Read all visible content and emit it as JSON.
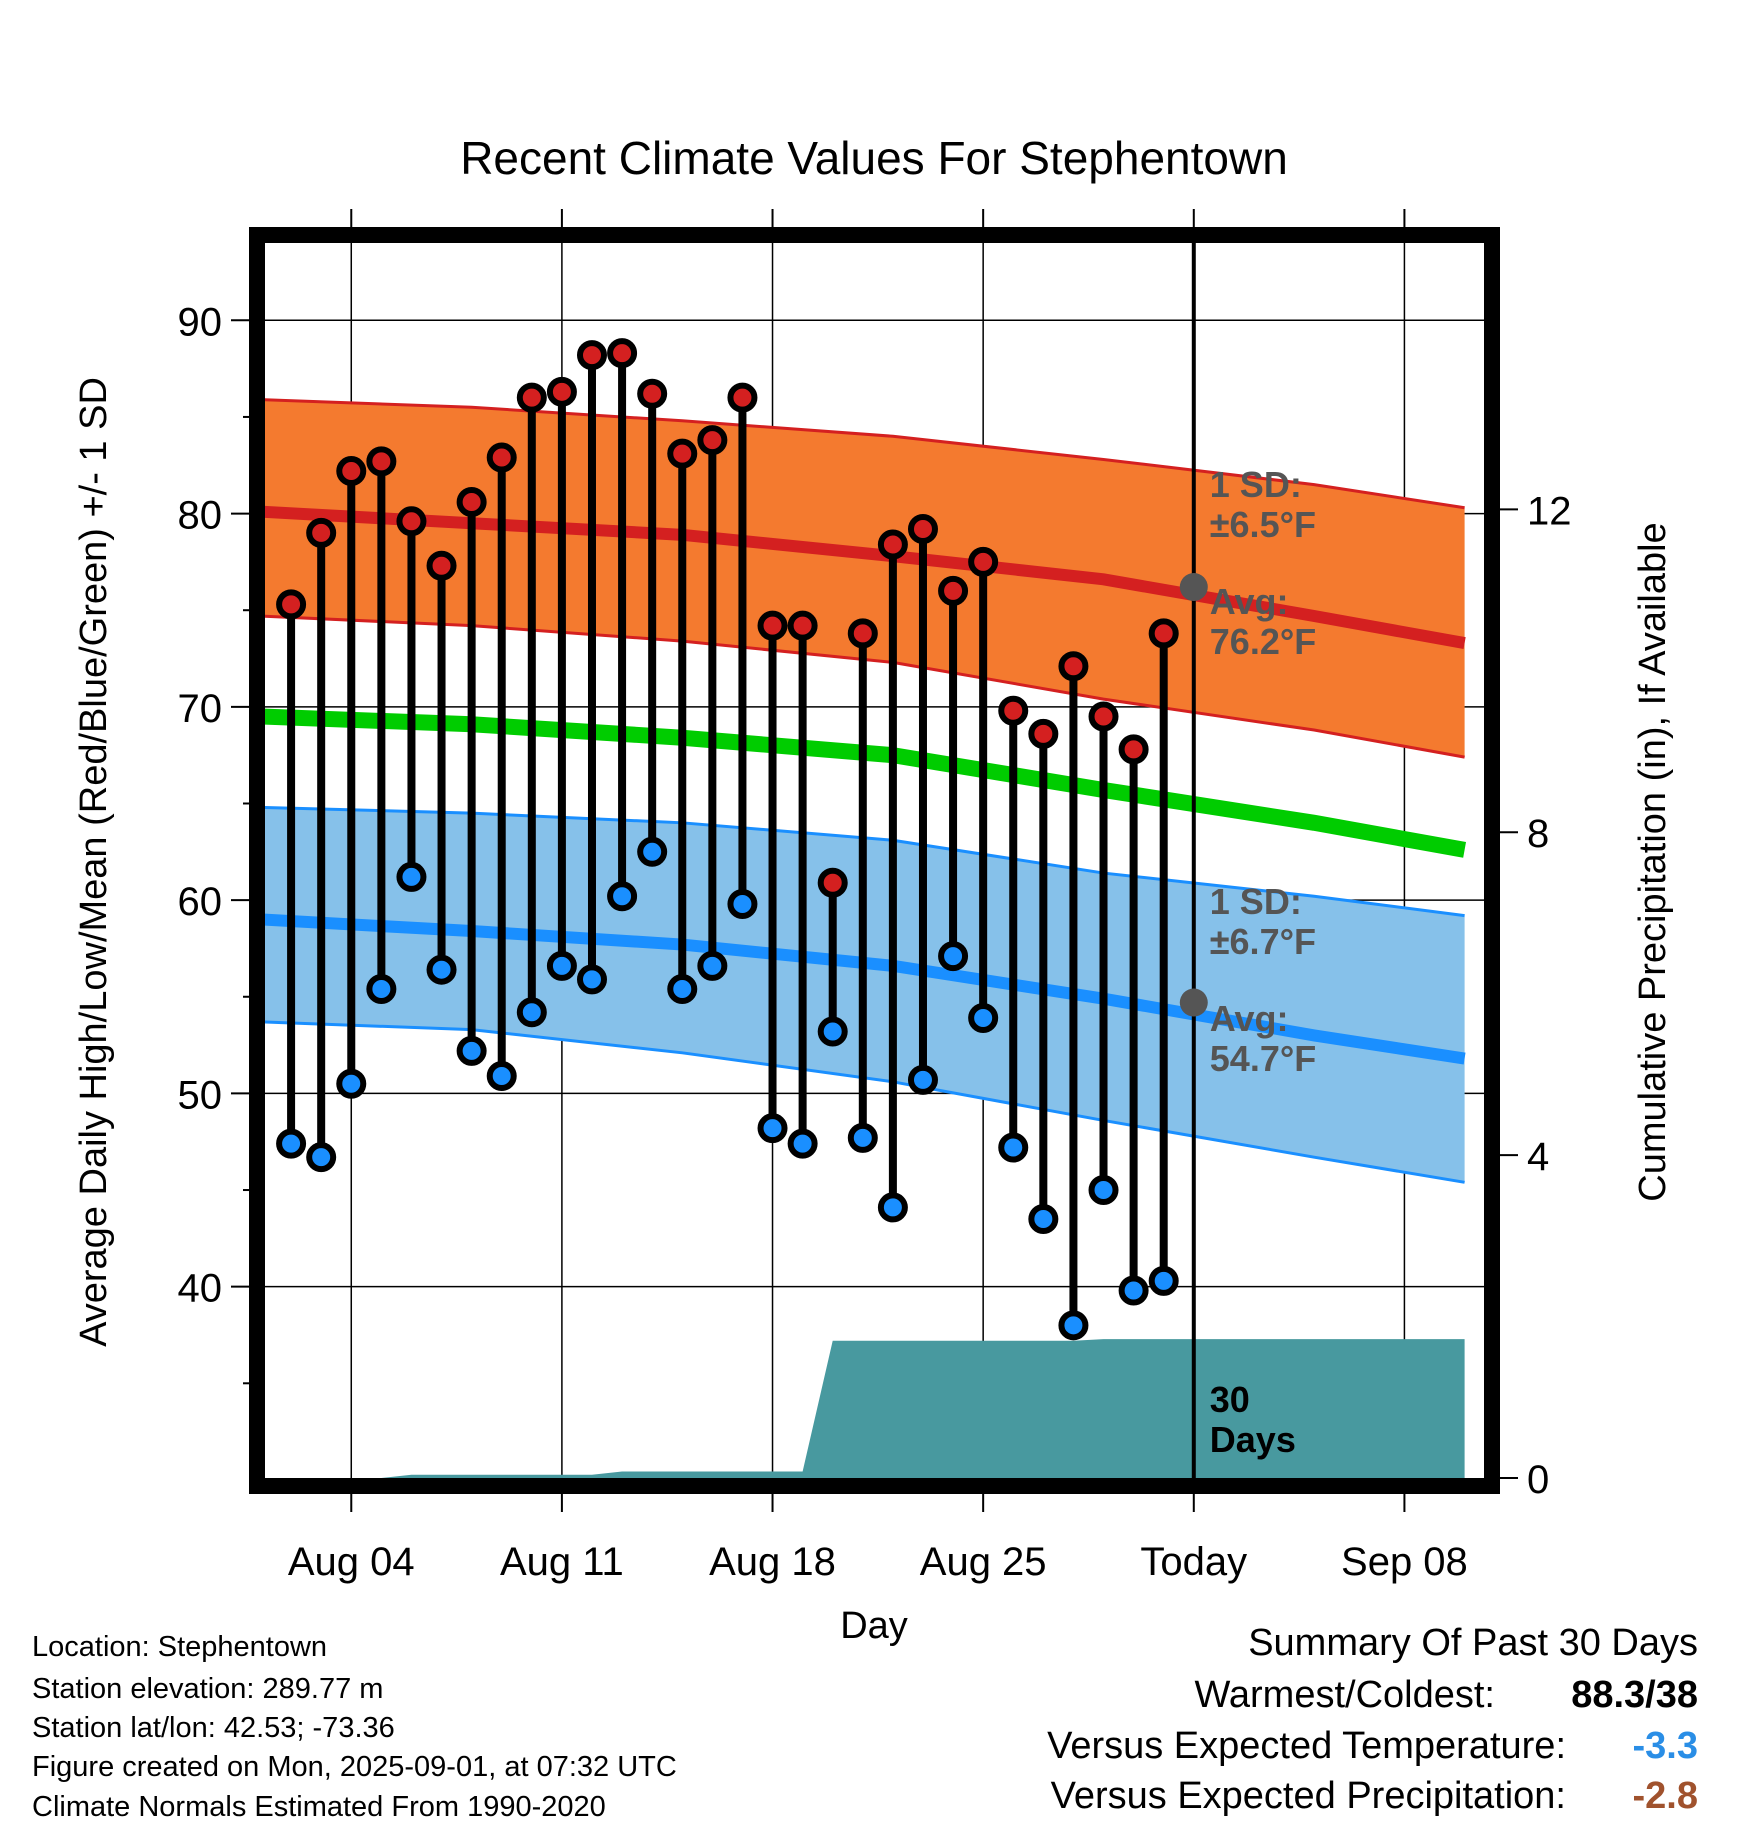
{
  "chart_data": {
    "type": "line",
    "title": "Recent Climate Values For Stephentown",
    "xlabel": "Day",
    "ylabel": "Average Daily High/Low/Mean (Red/Blue/Green) +/- 1 SD",
    "y2label": "Cumulative Precipitation (in), If Available",
    "x_tick_labels": [
      "Aug 04",
      "Aug 11",
      "Aug 18",
      "Aug 25",
      "Today",
      "Sep 08"
    ],
    "y_ticks": [
      40,
      50,
      60,
      70,
      80,
      90
    ],
    "y2_ticks": [
      0,
      4,
      8,
      12
    ],
    "ylim": [
      30.1,
      94
    ],
    "y2lim": [
      0,
      15.3
    ],
    "grid": true,
    "observed_days": [
      "Aug 02",
      "Aug 03",
      "Aug 04",
      "Aug 05",
      "Aug 06",
      "Aug 07",
      "Aug 08",
      "Aug 09",
      "Aug 10",
      "Aug 11",
      "Aug 12",
      "Aug 13",
      "Aug 14",
      "Aug 15",
      "Aug 16",
      "Aug 17",
      "Aug 18",
      "Aug 19",
      "Aug 20",
      "Aug 21",
      "Aug 22",
      "Aug 23",
      "Aug 24",
      "Aug 25",
      "Aug 26",
      "Aug 27",
      "Aug 28",
      "Aug 29",
      "Aug 30",
      "Aug 31"
    ],
    "observed_high": [
      75.3,
      79.0,
      82.2,
      82.7,
      79.6,
      77.3,
      80.6,
      82.9,
      86.0,
      86.3,
      88.2,
      88.3,
      86.2,
      83.1,
      83.8,
      86.0,
      74.2,
      74.2,
      60.9,
      73.8,
      78.4,
      79.2,
      76.0,
      77.5,
      69.8,
      68.6,
      72.1,
      69.5,
      67.8,
      73.8
    ],
    "observed_low": [
      47.4,
      46.7,
      50.5,
      55.4,
      61.2,
      56.4,
      52.2,
      50.9,
      54.2,
      56.6,
      55.9,
      60.2,
      62.5,
      55.4,
      56.6,
      59.8,
      48.2,
      47.4,
      53.2,
      47.7,
      44.1,
      50.7,
      57.1,
      53.9,
      47.2,
      43.5,
      38.0,
      45.0,
      39.8,
      40.3
    ],
    "normals_days": [
      "Aug 01",
      "Aug 08",
      "Aug 15",
      "Aug 22",
      "Aug 29",
      "Sep 05",
      "Sep 10"
    ],
    "normal_high_avg": [
      80.1,
      79.5,
      78.9,
      77.8,
      76.6,
      74.7,
      73.3
    ],
    "normal_high_plus_sd": [
      85.9,
      85.5,
      84.8,
      84.0,
      82.8,
      81.5,
      80.3
    ],
    "normal_high_minus_sd": [
      74.7,
      74.2,
      73.4,
      72.3,
      70.4,
      68.8,
      67.4
    ],
    "normal_mean": [
      69.5,
      69.1,
      68.4,
      67.5,
      65.7,
      64.0,
      62.6
    ],
    "normal_low_avg": [
      59.0,
      58.4,
      57.7,
      56.6,
      54.9,
      53.0,
      51.8
    ],
    "normal_low_plus_sd": [
      64.8,
      64.5,
      64.0,
      63.1,
      61.4,
      60.2,
      59.2
    ],
    "normal_low_minus_sd": [
      53.7,
      53.3,
      52.1,
      50.6,
      48.6,
      46.7,
      45.4
    ],
    "precip_days": [
      "Aug 01",
      "Aug 05",
      "Aug 06",
      "Aug 12",
      "Aug 13",
      "Aug 19",
      "Aug 20",
      "Aug 28",
      "Aug 29",
      "Sep 10"
    ],
    "cumulative_precip": [
      0.0,
      0.0,
      0.04,
      0.04,
      0.08,
      0.08,
      1.7,
      1.7,
      1.72,
      1.72
    ],
    "annotations": {
      "high_sd": [
        "1 SD:",
        "±6.5°F"
      ],
      "high_avg": [
        "Avg:",
        "76.2°F"
      ],
      "low_sd": [
        "1 SD:",
        "±6.7°F"
      ],
      "low_avg": [
        "Avg:",
        "54.7°F"
      ],
      "days_count": [
        "30",
        "Days"
      ]
    },
    "today_high_avg": 76.2,
    "today_low_avg": 54.7,
    "colors": {
      "high_band": "#f47a2f",
      "high_line": "#d42020",
      "mean_line": "#00cc00",
      "low_band": "#86c1ea",
      "low_line": "#1a8fff",
      "precip": "#48999f",
      "high_marker": "#d42020",
      "low_marker": "#1a8fff",
      "annotation": "#555555"
    }
  },
  "info": {
    "location": "Location: Stephentown",
    "elevation": "Station elevation: 289.77 m",
    "latlon": "Station lat/lon: 42.53; -73.36",
    "created": "Figure created on Mon, 2025-09-01, at 07:32 UTC",
    "normals": "Climate Normals Estimated From 1990-2020"
  },
  "summary": {
    "title": "Summary Of Past 30 Days",
    "warmest_coldest_label": "Warmest/Coldest:",
    "warmest_coldest_value": "88.3/38",
    "temp_label": "Versus Expected Temperature:",
    "temp_value": "-3.3",
    "temp_color": "#2a8ee6",
    "precip_label": "Versus Expected Precipitation:",
    "precip_value": "-2.8",
    "precip_color": "#a0522d"
  }
}
